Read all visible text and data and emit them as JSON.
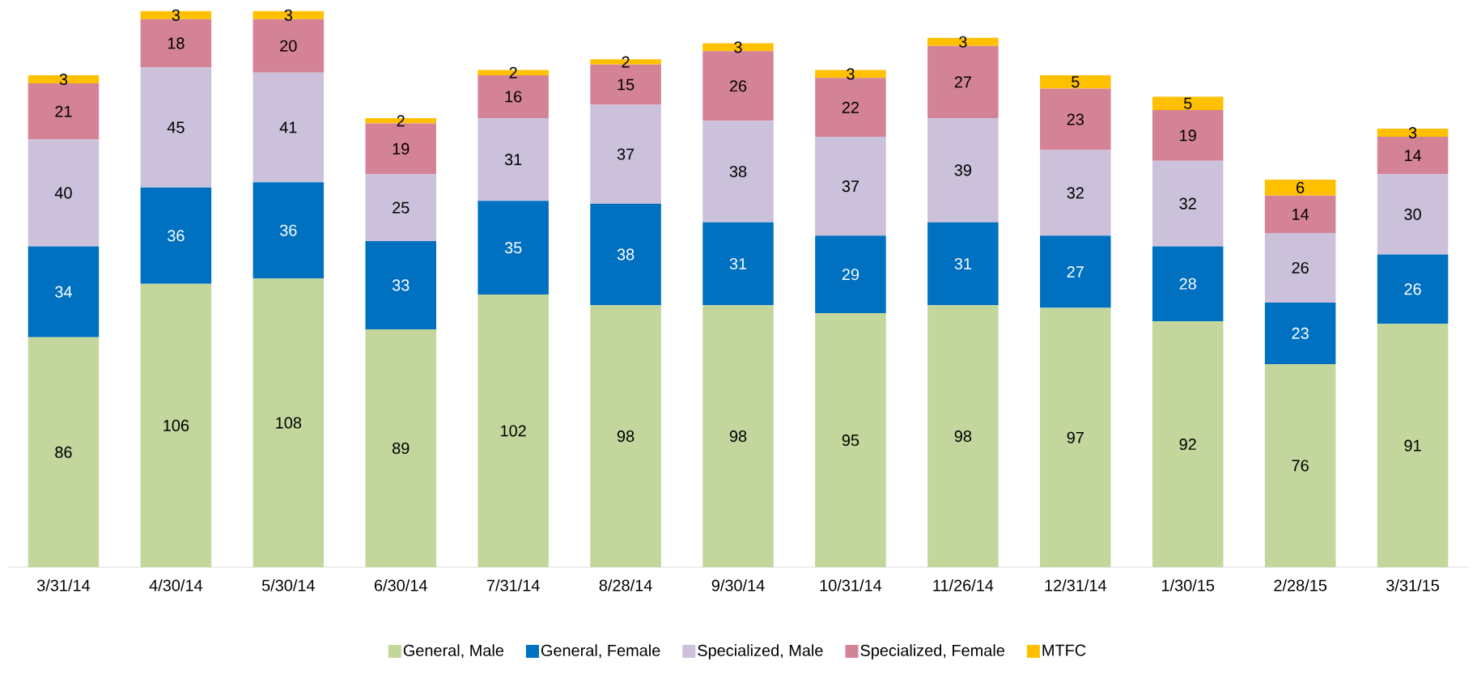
{
  "chart_data": {
    "type": "bar",
    "stacked": true,
    "data_labels": true,
    "legend": "bottom",
    "categories": [
      "3/31/14",
      "4/30/14",
      "5/30/14",
      "6/30/14",
      "7/31/14",
      "8/28/14",
      "9/30/14",
      "10/31/14",
      "11/26/14",
      "12/31/14",
      "1/30/15",
      "2/28/15",
      "3/31/15"
    ],
    "series": [
      {
        "name": "General, Male",
        "color": "#c3d69b",
        "values": [
          86,
          106,
          108,
          89,
          102,
          98,
          98,
          95,
          98,
          97,
          92,
          76,
          91
        ]
      },
      {
        "name": "General, Female",
        "color": "#0070c0",
        "values": [
          34,
          36,
          36,
          33,
          35,
          38,
          31,
          29,
          31,
          27,
          28,
          23,
          26
        ]
      },
      {
        "name": "Specialized, Male",
        "color": "#ccc1da",
        "values": [
          40,
          45,
          41,
          25,
          31,
          37,
          38,
          37,
          39,
          32,
          32,
          26,
          30
        ]
      },
      {
        "name": "Specialized, Female",
        "color": "#d48396",
        "values": [
          21,
          18,
          20,
          19,
          16,
          15,
          26,
          22,
          27,
          23,
          19,
          14,
          14
        ]
      },
      {
        "name": "MTFC",
        "color": "#ffc000",
        "values": [
          3,
          3,
          3,
          2,
          2,
          2,
          3,
          3,
          3,
          5,
          5,
          6,
          3
        ]
      }
    ]
  }
}
